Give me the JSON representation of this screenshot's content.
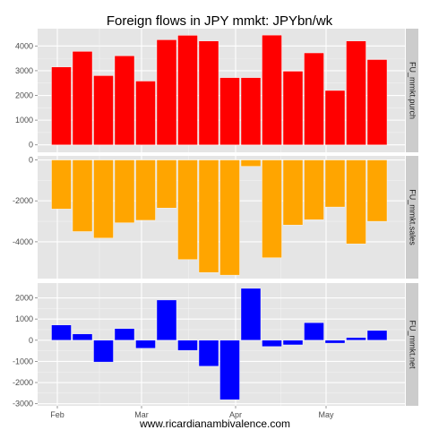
{
  "chart_data": {
    "type": "bar",
    "title": "Foreign flows in JPY mmkt: JPYbn/wk",
    "caption": "www.ricardianambivalence.com",
    "x_tick_labels": [
      "Feb",
      "Mar",
      "Apr",
      "May"
    ],
    "weeks": 17,
    "panels": [
      {
        "name": "FU_mmkt.purch",
        "color": "#ff0000",
        "ylim": [
          -300,
          4700
        ],
        "yticks": [
          0,
          1000,
          2000,
          3000,
          4000
        ],
        "values": [
          3150,
          3780,
          2800,
          3600,
          2580,
          4250,
          4430,
          4200,
          2720,
          2720,
          4440,
          2980,
          3720,
          2200,
          4200,
          3450,
          null
        ]
      },
      {
        "name": "FU_mmkt.sales",
        "color": "#ffa500",
        "ylim": [
          -5800,
          200
        ],
        "yticks": [
          -4000,
          -2000,
          0
        ],
        "values": [
          -2400,
          -3500,
          -3820,
          -3070,
          -2950,
          -2350,
          -4870,
          -5500,
          -5630,
          -310,
          -4780,
          -3180,
          -2920,
          -2300,
          -4100,
          -3000,
          null
        ]
      },
      {
        "name": "FU_mmkt.net",
        "color": "#0000ff",
        "ylim": [
          -3100,
          2700
        ],
        "yticks": [
          -3000,
          -2000,
          -1000,
          0,
          1000,
          2000
        ],
        "values": [
          720,
          300,
          -1030,
          550,
          -380,
          1900,
          -480,
          -1230,
          -2810,
          2450,
          -300,
          -220,
          830,
          -140,
          130,
          460,
          null
        ]
      }
    ]
  },
  "colors": {
    "panel_bg": "#e5e5e5",
    "grid_major": "#ffffff",
    "grid_minor": "#f2f2f2",
    "strip_bg": "#cccccc",
    "tick_text": "#4d4d4d"
  }
}
